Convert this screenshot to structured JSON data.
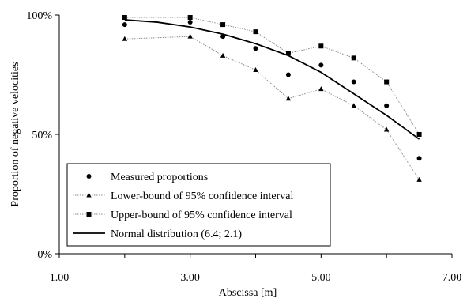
{
  "chart_data": {
    "type": "line",
    "xlabel": "Abscissa [m]",
    "ylabel": "Proportion of negative velocities",
    "xlim": [
      1.0,
      7.0
    ],
    "ylim": [
      0,
      100
    ],
    "x_ticks": [
      "1.00",
      "3.00",
      "5.00",
      "7.00"
    ],
    "y_ticks": [
      "0%",
      "50%",
      "100%"
    ],
    "grid": false,
    "legend_position": "bottom-left",
    "series": [
      {
        "name": "Measured proportions",
        "style": "markers",
        "marker": "circle",
        "x": [
          2.0,
          3.0,
          3.5,
          4.0,
          4.5,
          5.0,
          5.5,
          6.0,
          6.5
        ],
        "y": [
          96,
          97,
          91,
          86,
          75,
          79,
          72,
          62,
          40
        ]
      },
      {
        "name": "Lower-bound of 95% confidence interval",
        "style": "dotted-line-markers",
        "marker": "triangle",
        "x": [
          2.0,
          3.0,
          3.5,
          4.0,
          4.5,
          5.0,
          5.5,
          6.0,
          6.5
        ],
        "y": [
          90,
          91,
          83,
          77,
          65,
          69,
          62,
          52,
          31
        ]
      },
      {
        "name": "Upper-bound of 95% confidence interval",
        "style": "dotted-line-markers",
        "marker": "square",
        "x": [
          2.0,
          3.0,
          3.5,
          4.0,
          4.5,
          5.0,
          5.5,
          6.0,
          6.5
        ],
        "y": [
          99,
          99,
          96,
          93,
          84,
          87,
          82,
          72,
          50
        ]
      },
      {
        "name": "Normal distribution (6.4; 2.1)",
        "style": "solid-line",
        "marker": "none",
        "x": [
          2.0,
          2.5,
          3.0,
          3.5,
          4.0,
          4.5,
          5.0,
          5.5,
          6.0,
          6.5
        ],
        "y": [
          98,
          97,
          95,
          92,
          88,
          83,
          76,
          67,
          58,
          48
        ]
      }
    ]
  }
}
